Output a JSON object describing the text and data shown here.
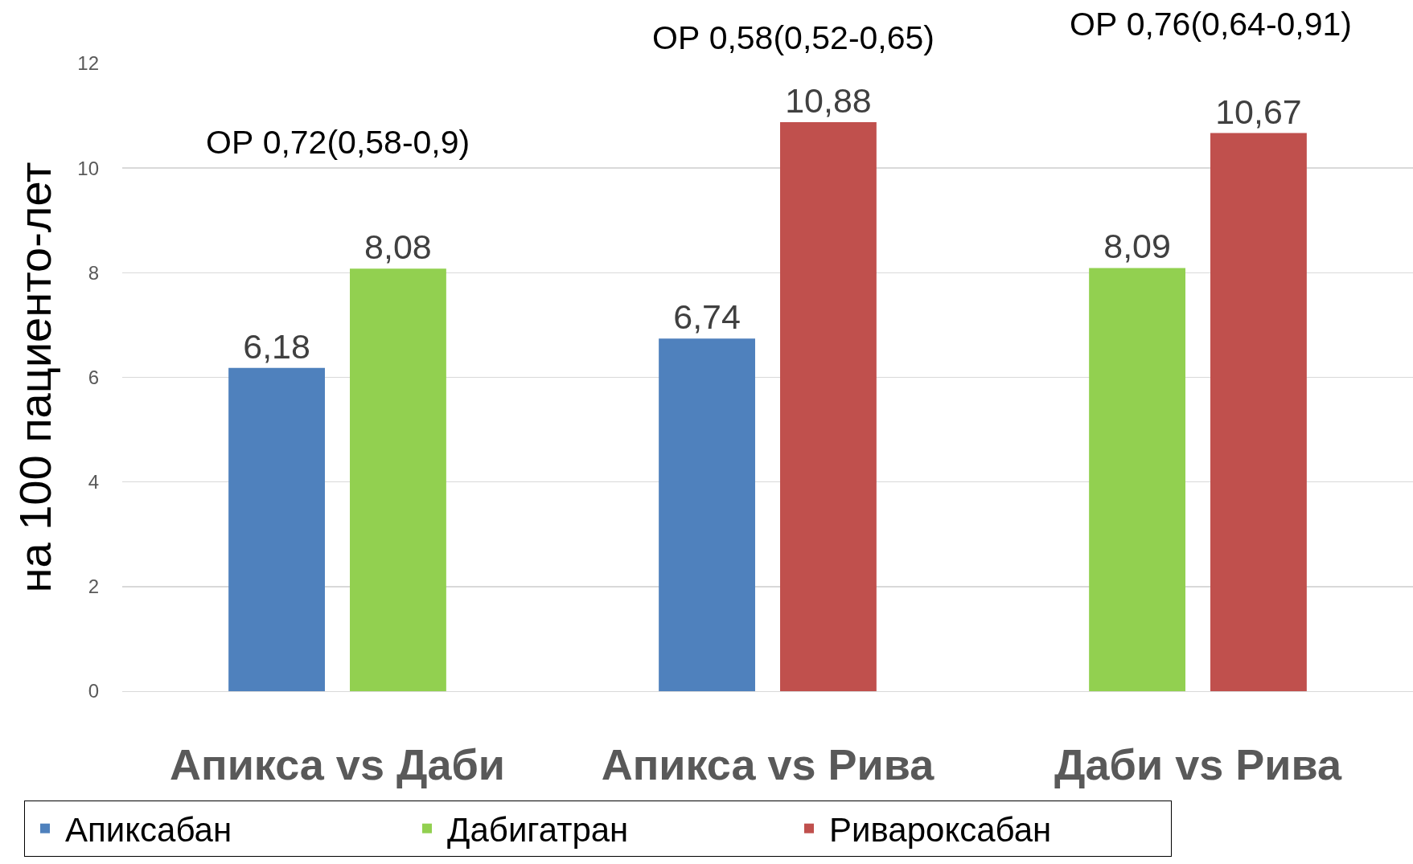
{
  "chart_data": {
    "type": "bar",
    "ylabel": "на 100 пациенто-лет",
    "categories": [
      "Апикса vs Даби",
      "Апикса vs Рива",
      "Даби vs Рива"
    ],
    "series": [
      {
        "name": "Апиксабан",
        "color": "#4f81bd",
        "values": [
          6.18,
          6.74,
          null
        ],
        "value_labels": [
          "6,18",
          "6,74",
          null
        ]
      },
      {
        "name": "Дабигатран",
        "color": "#92d050",
        "values": [
          8.08,
          null,
          8.09
        ],
        "value_labels": [
          "8,08",
          null,
          "8,09"
        ]
      },
      {
        "name": "Ривароксабан",
        "color": "#c0504d",
        "values": [
          null,
          10.88,
          10.67
        ],
        "value_labels": [
          null,
          "10,88",
          "10,67"
        ]
      }
    ],
    "annotations": [
      "ОР 0,72(0,58-0,9)",
      "ОР 0,58(0,52-0,65)",
      "ОР 0,76(0,64-0,91)"
    ],
    "ylim": [
      0,
      12
    ],
    "yticks": [
      0,
      2,
      4,
      6,
      8,
      10,
      12
    ],
    "grid": "y",
    "legend": "bottom"
  }
}
